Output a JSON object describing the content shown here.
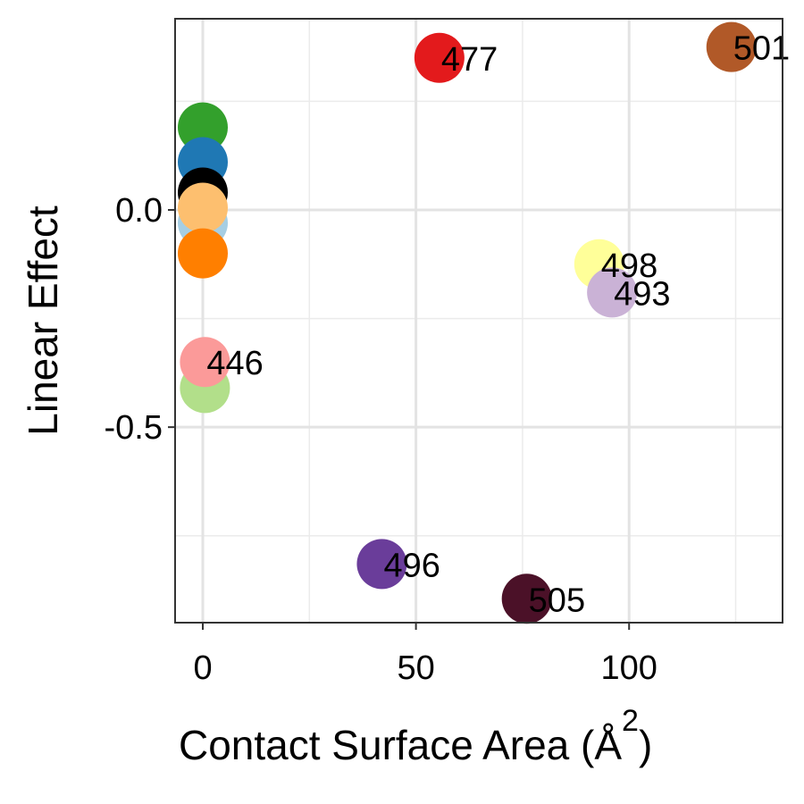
{
  "chart_data": {
    "type": "scatter",
    "xlabel": "Contact Surface Area (Å",
    "xlabel_superscript": "2",
    "xlabel_close": ")",
    "ylabel": "Linear Effect",
    "xlim": [
      -6.5,
      136
    ],
    "ylim": [
      -0.95,
      0.44
    ],
    "x_ticks": [
      0,
      50,
      100
    ],
    "x_tick_labels": [
      "0",
      "50",
      "100"
    ],
    "y_ticks": [
      0.0,
      -0.5
    ],
    "y_tick_labels": [
      "0.0",
      "-0.5"
    ],
    "x_minor_grid": [
      25,
      75,
      125
    ],
    "y_minor_grid": [
      0.25,
      -0.25,
      -0.75
    ],
    "grid": true,
    "legend": "none",
    "points": [
      {
        "x": 0,
        "y": 0.19,
        "label": "",
        "color": "#33a02c"
      },
      {
        "x": 0,
        "y": 0.11,
        "label": "",
        "color": "#1f78b4"
      },
      {
        "x": 0,
        "y": 0.04,
        "label": "",
        "color": "#000000"
      },
      {
        "x": 0,
        "y": -0.03,
        "label": "",
        "color": "#a6cee3"
      },
      {
        "x": 0,
        "y": 0.005,
        "label": "",
        "color": "#fdbf6f"
      },
      {
        "x": 0,
        "y": -0.1,
        "label": "",
        "color": "#ff7f00"
      },
      {
        "x": 0.5,
        "y": -0.41,
        "label": "",
        "color": "#b2df8a"
      },
      {
        "x": 0.5,
        "y": -0.35,
        "label": "446",
        "color": "#fb9a99"
      },
      {
        "x": 55.5,
        "y": 0.35,
        "label": "477",
        "color": "#e31a1c"
      },
      {
        "x": 124,
        "y": 0.375,
        "label": "501",
        "color": "#b15928"
      },
      {
        "x": 93,
        "y": -0.125,
        "label": "498",
        "color": "#ffff99"
      },
      {
        "x": 96,
        "y": -0.19,
        "label": "493",
        "color": "#cab2d6"
      },
      {
        "x": 42,
        "y": -0.815,
        "label": "496",
        "color": "#6a3d9a"
      },
      {
        "x": 76,
        "y": -0.895,
        "label": "505",
        "color": "#4b1128"
      }
    ]
  }
}
